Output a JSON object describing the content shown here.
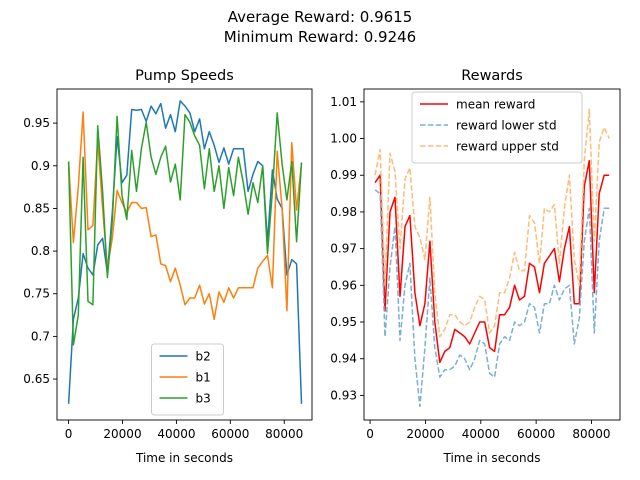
{
  "suptitle": {
    "line1": "Average Reward: 0.9615",
    "line2": "Minimum Reward: 0.9246"
  },
  "chart_data": [
    {
      "type": "line",
      "title": "Pump Speeds",
      "xlabel": "Time in seconds",
      "ylabel": "",
      "xlim": [
        -4300,
        90300
      ],
      "ylim": [
        0.602,
        0.99
      ],
      "xticks": [
        0,
        20000,
        40000,
        60000,
        80000
      ],
      "yticks": [
        0.65,
        0.7,
        0.75,
        0.8,
        0.85,
        0.9,
        0.95
      ],
      "grid": false,
      "legend_position": "lower-center",
      "x": [
        0,
        1800,
        3600,
        5400,
        7200,
        9000,
        10800,
        12600,
        14400,
        16200,
        18000,
        19800,
        21600,
        23400,
        25200,
        27000,
        28800,
        30600,
        32400,
        34200,
        36000,
        37800,
        39600,
        41400,
        43200,
        45000,
        46800,
        48600,
        50400,
        52200,
        54000,
        55800,
        57600,
        59400,
        61200,
        63000,
        64800,
        66600,
        68400,
        70200,
        72000,
        73800,
        75600,
        77400,
        79200,
        81000,
        82800,
        84600,
        86400
      ],
      "series": [
        {
          "name": "b2",
          "color": "#1f77b4",
          "values": [
            0.621,
            0.72,
            0.745,
            0.797,
            0.78,
            0.772,
            0.807,
            0.815,
            0.774,
            0.845,
            0.934,
            0.88,
            0.889,
            0.966,
            0.965,
            0.966,
            0.952,
            0.97,
            0.961,
            0.973,
            0.944,
            0.96,
            0.94,
            0.976,
            0.97,
            0.962,
            0.94,
            0.955,
            0.92,
            0.94,
            0.924,
            0.904,
            0.921,
            0.902,
            0.92,
            0.92,
            0.92,
            0.87,
            0.89,
            0.905,
            0.9,
            0.81,
            0.895,
            0.861,
            0.85,
            0.772,
            0.79,
            0.785,
            0.621
          ]
        },
        {
          "name": "b1",
          "color": "#ff7f0e",
          "values": [
            0.905,
            0.81,
            0.875,
            0.963,
            0.825,
            0.83,
            0.93,
            0.85,
            0.78,
            0.815,
            0.871,
            0.857,
            0.845,
            0.857,
            0.857,
            0.85,
            0.851,
            0.817,
            0.819,
            0.785,
            0.783,
            0.764,
            0.78,
            0.76,
            0.737,
            0.745,
            0.745,
            0.76,
            0.738,
            0.75,
            0.72,
            0.752,
            0.74,
            0.757,
            0.745,
            0.757,
            0.757,
            0.757,
            0.757,
            0.78,
            0.788,
            0.795,
            0.757,
            0.917,
            0.85,
            0.73,
            0.927,
            0.848,
            0.903
          ]
        },
        {
          "name": "b3",
          "color": "#2ca02c",
          "values": [
            0.905,
            0.69,
            0.725,
            0.91,
            0.741,
            0.737,
            0.947,
            0.87,
            0.769,
            0.835,
            0.958,
            0.865,
            0.837,
            0.918,
            0.87,
            0.92,
            0.951,
            0.91,
            0.89,
            0.91,
            0.923,
            0.881,
            0.902,
            0.86,
            0.96,
            0.951,
            0.935,
            0.924,
            0.873,
            0.92,
            0.87,
            0.9,
            0.85,
            0.898,
            0.865,
            0.91,
            0.88,
            0.843,
            0.88,
            0.857,
            0.9,
            0.797,
            0.87,
            0.962,
            0.902,
            0.86,
            0.905,
            0.811,
            0.904
          ]
        }
      ]
    },
    {
      "type": "line",
      "title": "Rewards",
      "xlabel": "Time in seconds",
      "ylabel": "",
      "xlim": [
        -2200,
        90300
      ],
      "ylim": [
        0.9233,
        1.0135
      ],
      "xticks": [
        0,
        20000,
        40000,
        60000,
        80000
      ],
      "yticks": [
        0.93,
        0.94,
        0.95,
        0.96,
        0.97,
        0.98,
        0.99,
        1.0,
        1.01
      ],
      "ytick_labels": [
        "0.93",
        "0.94",
        "0.95",
        "0.96",
        "0.97",
        "0.98",
        "0.99",
        "1.00",
        "1.01"
      ],
      "grid": false,
      "legend_position": "top-center",
      "x": [
        1800,
        3600,
        5400,
        7200,
        9000,
        10800,
        12600,
        14400,
        16200,
        18000,
        19800,
        21600,
        23400,
        25200,
        27000,
        28800,
        30600,
        32400,
        34200,
        36000,
        37800,
        39600,
        41400,
        43200,
        45000,
        46800,
        48600,
        50400,
        52200,
        54000,
        55800,
        57600,
        59400,
        61200,
        63000,
        64800,
        66600,
        68400,
        70200,
        72000,
        73800,
        75600,
        77400,
        79200,
        81000,
        82800,
        84600,
        86400
      ],
      "series": [
        {
          "name": "mean reward",
          "color": "#ff0000",
          "dashed": false,
          "values": [
            0.988,
            0.99,
            0.953,
            0.98,
            0.984,
            0.957,
            0.976,
            0.979,
            0.958,
            0.949,
            0.955,
            0.972,
            0.95,
            0.939,
            0.942,
            0.943,
            0.948,
            0.947,
            0.946,
            0.944,
            0.947,
            0.95,
            0.95,
            0.943,
            0.942,
            0.952,
            0.952,
            0.954,
            0.96,
            0.956,
            0.957,
            0.966,
            0.965,
            0.958,
            0.966,
            0.968,
            0.97,
            0.961,
            0.97,
            0.976,
            0.955,
            0.955,
            0.987,
            0.994,
            0.958,
            0.985,
            0.99,
            0.99
          ]
        },
        {
          "name": "reward lower std",
          "color": "#7ab0d4",
          "dashed": true,
          "values": [
            0.986,
            0.985,
            0.946,
            0.965,
            0.976,
            0.945,
            0.96,
            0.966,
            0.94,
            0.927,
            0.943,
            0.962,
            0.943,
            0.935,
            0.937,
            0.937,
            0.938,
            0.941,
            0.94,
            0.937,
            0.94,
            0.945,
            0.944,
            0.936,
            0.935,
            0.944,
            0.946,
            0.945,
            0.95,
            0.949,
            0.95,
            0.955,
            0.954,
            0.947,
            0.955,
            0.955,
            0.96,
            0.956,
            0.959,
            0.96,
            0.944,
            0.951,
            0.972,
            0.981,
            0.947,
            0.972,
            0.981,
            0.981
          ]
        },
        {
          "name": "reward upper std",
          "color": "#ffbb78",
          "dashed": true,
          "values": [
            0.99,
            0.997,
            0.96,
            0.996,
            0.991,
            0.97,
            0.989,
            0.992,
            0.976,
            0.973,
            0.967,
            0.984,
            0.958,
            0.946,
            0.948,
            0.952,
            0.952,
            0.95,
            0.949,
            0.95,
            0.954,
            0.957,
            0.956,
            0.947,
            0.949,
            0.958,
            0.958,
            0.962,
            0.969,
            0.964,
            0.964,
            0.979,
            0.977,
            0.966,
            0.981,
            0.98,
            0.982,
            0.966,
            0.981,
            0.99,
            0.967,
            0.96,
            0.994,
            1.008,
            0.972,
            0.999,
            1.003,
            1.0
          ]
        }
      ]
    }
  ]
}
